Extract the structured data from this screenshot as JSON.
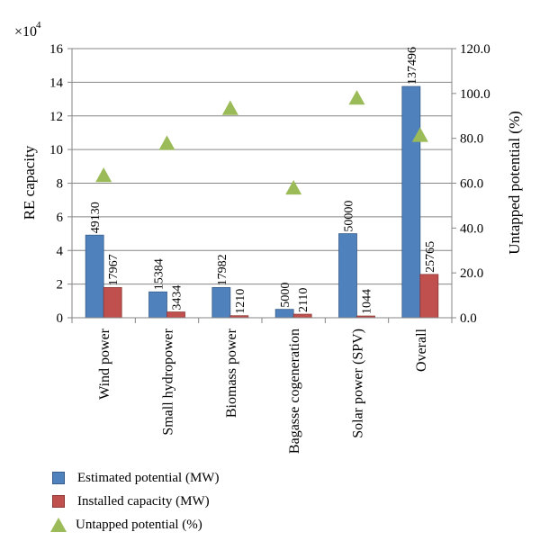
{
  "chart_data": {
    "type": "bar",
    "categories": [
      "Wind power",
      "Small hydropower",
      "Biomass power",
      "Bagasse cogeneration",
      "Solar power (SPV)",
      "Overall"
    ],
    "series": [
      {
        "name": "Estimated potential (MW)",
        "axis": "left",
        "values": [
          49130,
          15384,
          17982,
          5000,
          50000,
          137496
        ],
        "labels": [
          "49130",
          "15384",
          "17982",
          "5000",
          "50000",
          "137496"
        ],
        "color": "#4f81bd"
      },
      {
        "name": "Installed capacity (MW)",
        "axis": "left",
        "values": [
          17967,
          3434,
          1210,
          2110,
          1044,
          25765
        ],
        "labels": [
          "17967",
          "3434",
          "1210",
          "2110",
          "1044",
          "25765"
        ],
        "color": "#c0504d"
      },
      {
        "name": "Untapped potential (%)",
        "axis": "right",
        "type": "scatter",
        "marker": "triangle",
        "values": [
          63.4,
          77.7,
          93.3,
          57.8,
          97.9,
          81.3
        ],
        "color": "#9bbb59"
      }
    ],
    "ylabel": "RE capacity",
    "y_multiplier": "×10",
    "y_exponent": "4",
    "ylim": [
      0,
      160000
    ],
    "yticks": [
      "0",
      "2",
      "4",
      "6",
      "8",
      "10",
      "12",
      "14",
      "16"
    ],
    "y2label": "Untapped potential (%)",
    "y2lim": [
      0,
      120
    ],
    "y2ticks": [
      "0.0",
      "20.0",
      "40.0",
      "60.0",
      "80.0",
      "100.0",
      "120.0"
    ],
    "grid": "horizontal",
    "legend_position": "bottom-left"
  }
}
